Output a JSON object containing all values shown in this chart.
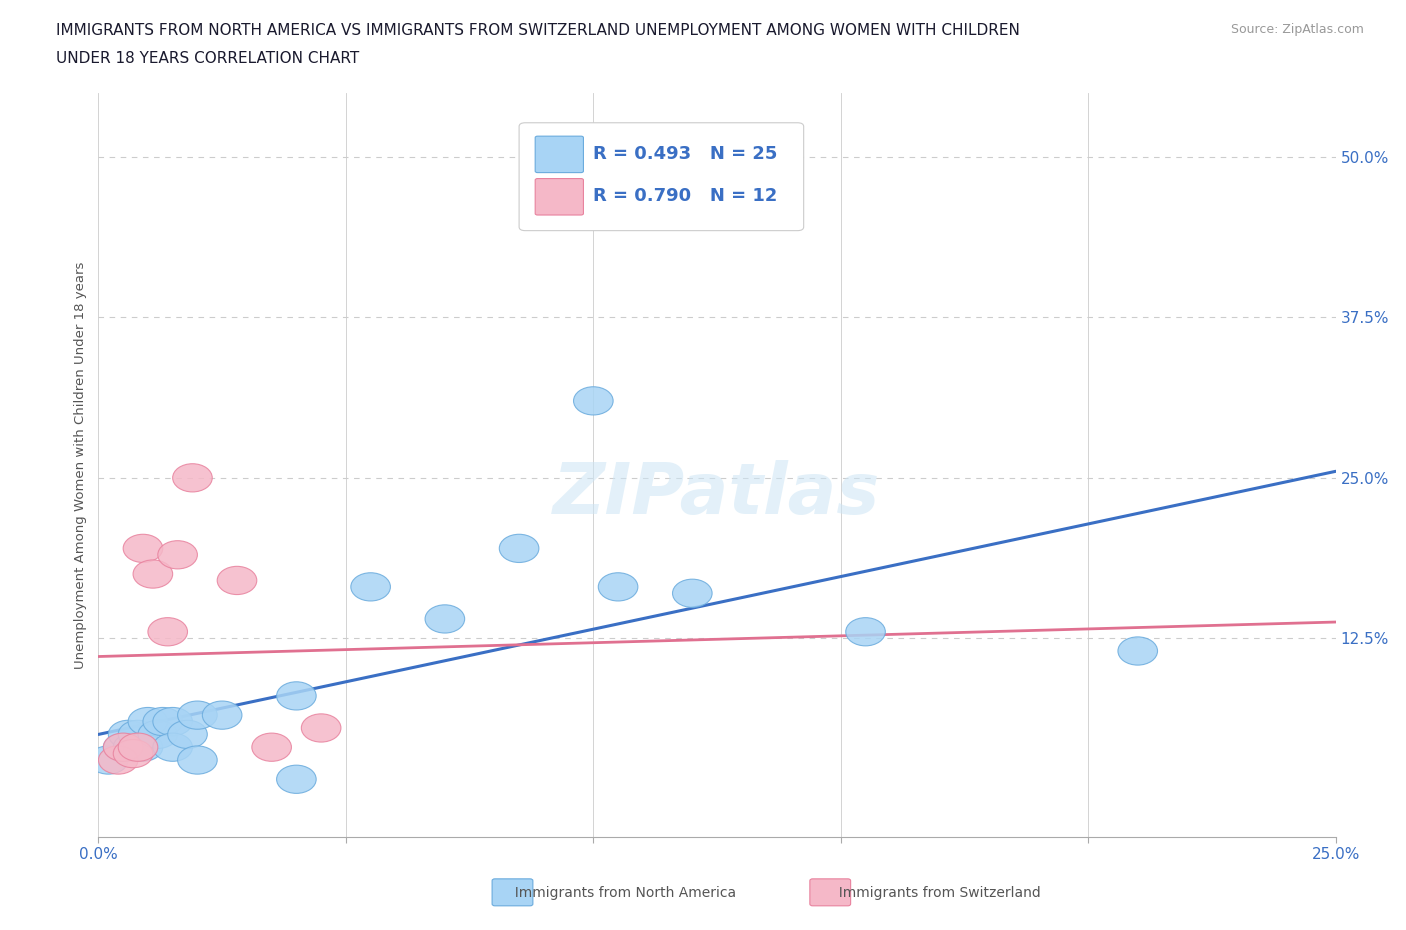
{
  "title_line1": "IMMIGRANTS FROM NORTH AMERICA VS IMMIGRANTS FROM SWITZERLAND UNEMPLOYMENT AMONG WOMEN WITH CHILDREN",
  "title_line2": "UNDER 18 YEARS CORRELATION CHART",
  "source": "Source: ZipAtlas.com",
  "ylabel": "Unemployment Among Women with Children Under 18 years",
  "ytick_labels": [
    "12.5%",
    "25.0%",
    "37.5%",
    "50.0%"
  ],
  "ytick_values": [
    0.125,
    0.25,
    0.375,
    0.5
  ],
  "xlim": [
    0.0,
    0.25
  ],
  "ylim": [
    -0.03,
    0.55
  ],
  "r_north_america": 0.493,
  "n_north_america": 25,
  "r_switzerland": 0.79,
  "n_switzerland": 12,
  "color_na_face": "#a8d4f5",
  "color_na_edge": "#6aabdd",
  "color_sw_face": "#f5b8c8",
  "color_sw_edge": "#e8829e",
  "line_color_na": "#3a6fc4",
  "line_color_sw": "#e07090",
  "north_america_x": [
    0.002,
    0.005,
    0.006,
    0.007,
    0.008,
    0.009,
    0.01,
    0.012,
    0.013,
    0.015,
    0.015,
    0.018,
    0.02,
    0.02,
    0.025,
    0.04,
    0.04,
    0.055,
    0.07,
    0.085,
    0.1,
    0.105,
    0.12,
    0.155,
    0.21
  ],
  "north_america_y": [
    0.03,
    0.04,
    0.05,
    0.04,
    0.05,
    0.04,
    0.06,
    0.05,
    0.06,
    0.06,
    0.04,
    0.05,
    0.03,
    0.065,
    0.065,
    0.08,
    0.015,
    0.165,
    0.14,
    0.195,
    0.31,
    0.165,
    0.16,
    0.13,
    0.115
  ],
  "switzerland_x": [
    0.004,
    0.005,
    0.007,
    0.008,
    0.009,
    0.011,
    0.014,
    0.016,
    0.019,
    0.028,
    0.035,
    0.045
  ],
  "switzerland_y": [
    0.03,
    0.04,
    0.035,
    0.04,
    0.195,
    0.175,
    0.13,
    0.19,
    0.25,
    0.17,
    0.04,
    0.055
  ],
  "watermark": "ZIPatlas",
  "background_color": "#ffffff",
  "grid_color": "#cccccc",
  "text_color": "#1a1a2e"
}
